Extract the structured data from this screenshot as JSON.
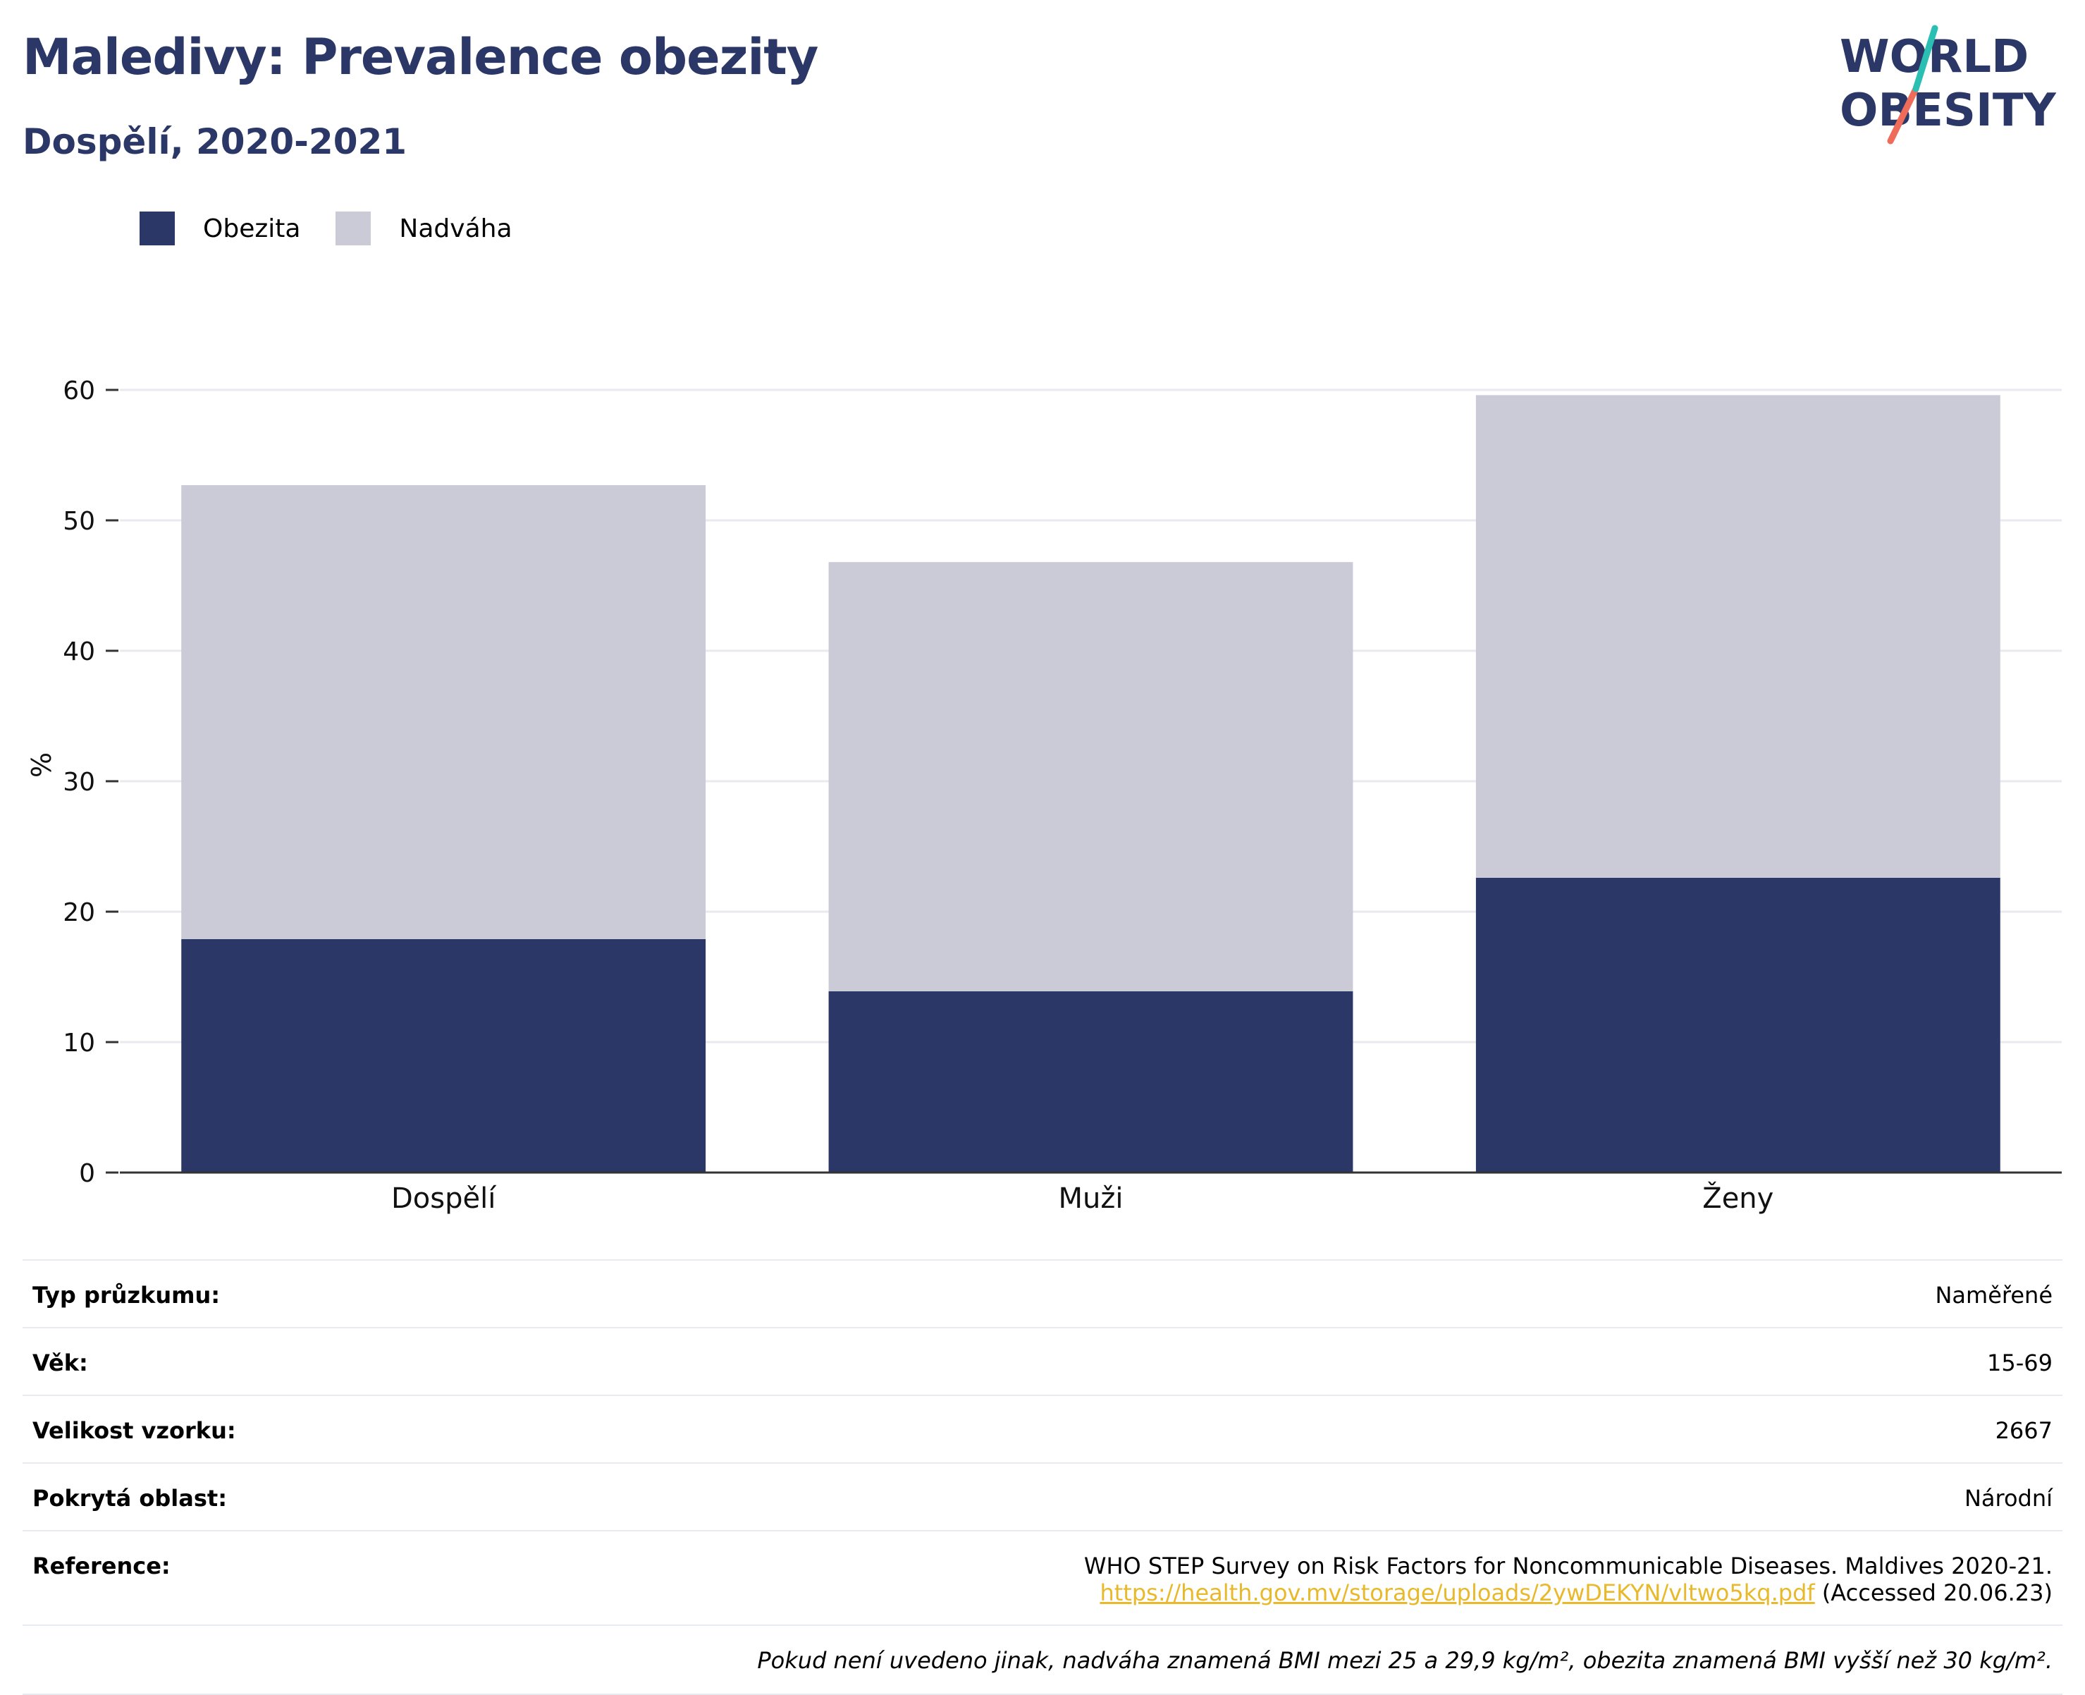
{
  "header": {
    "title": "Maledivy: Prevalence obezity",
    "subtitle": "Dospělí, 2020-2021"
  },
  "logo": {
    "line1": "WORLD",
    "line2": "OBESITY",
    "colors": {
      "text": "#2b3767",
      "teal": "#2bbfb3",
      "coral": "#ef6b5a"
    }
  },
  "legend": [
    {
      "label": "Obezita",
      "color": "#2b3767"
    },
    {
      "label": "Nadváha",
      "color": "#cacbd6"
    }
  ],
  "chart_data": {
    "type": "bar",
    "stacked": true,
    "categories": [
      "Dospělí",
      "Muži",
      "Ženy"
    ],
    "series": [
      {
        "name": "Obezita",
        "values": [
          17.9,
          13.9,
          22.6
        ],
        "color": "#2b3767"
      },
      {
        "name": "Nadváha",
        "values": [
          34.8,
          32.9,
          37.0
        ],
        "color": "#cacbd6"
      }
    ],
    "ylabel": "%",
    "ylim": [
      0,
      60
    ],
    "yticks": [
      0,
      10,
      20,
      30,
      40,
      50,
      60
    ],
    "grid": true
  },
  "info": {
    "rows": [
      {
        "key": "Typ průzkumu:",
        "value": "Naměřené"
      },
      {
        "key": "Věk:",
        "value": "15-69"
      },
      {
        "key": "Velikost vzorku:",
        "value": "2667"
      },
      {
        "key": "Pokrytá oblast:",
        "value": "Národní"
      }
    ],
    "reference": {
      "key": "Reference:",
      "line1": "WHO STEP Survey on Risk Factors for Noncommunicable Diseases. Maldives 2020-21.",
      "link": "https://health.gov.mv/storage/uploads/2ywDEKYN/vltwo5kq.pdf",
      "suffix": " (Accessed 20.06.23)"
    },
    "note": "Pokud není uvedeno jinak, nadváha znamená BMI mezi 25 a 29,9 kg/m², obezita znamená BMI vyšší než 30 kg/m²."
  }
}
